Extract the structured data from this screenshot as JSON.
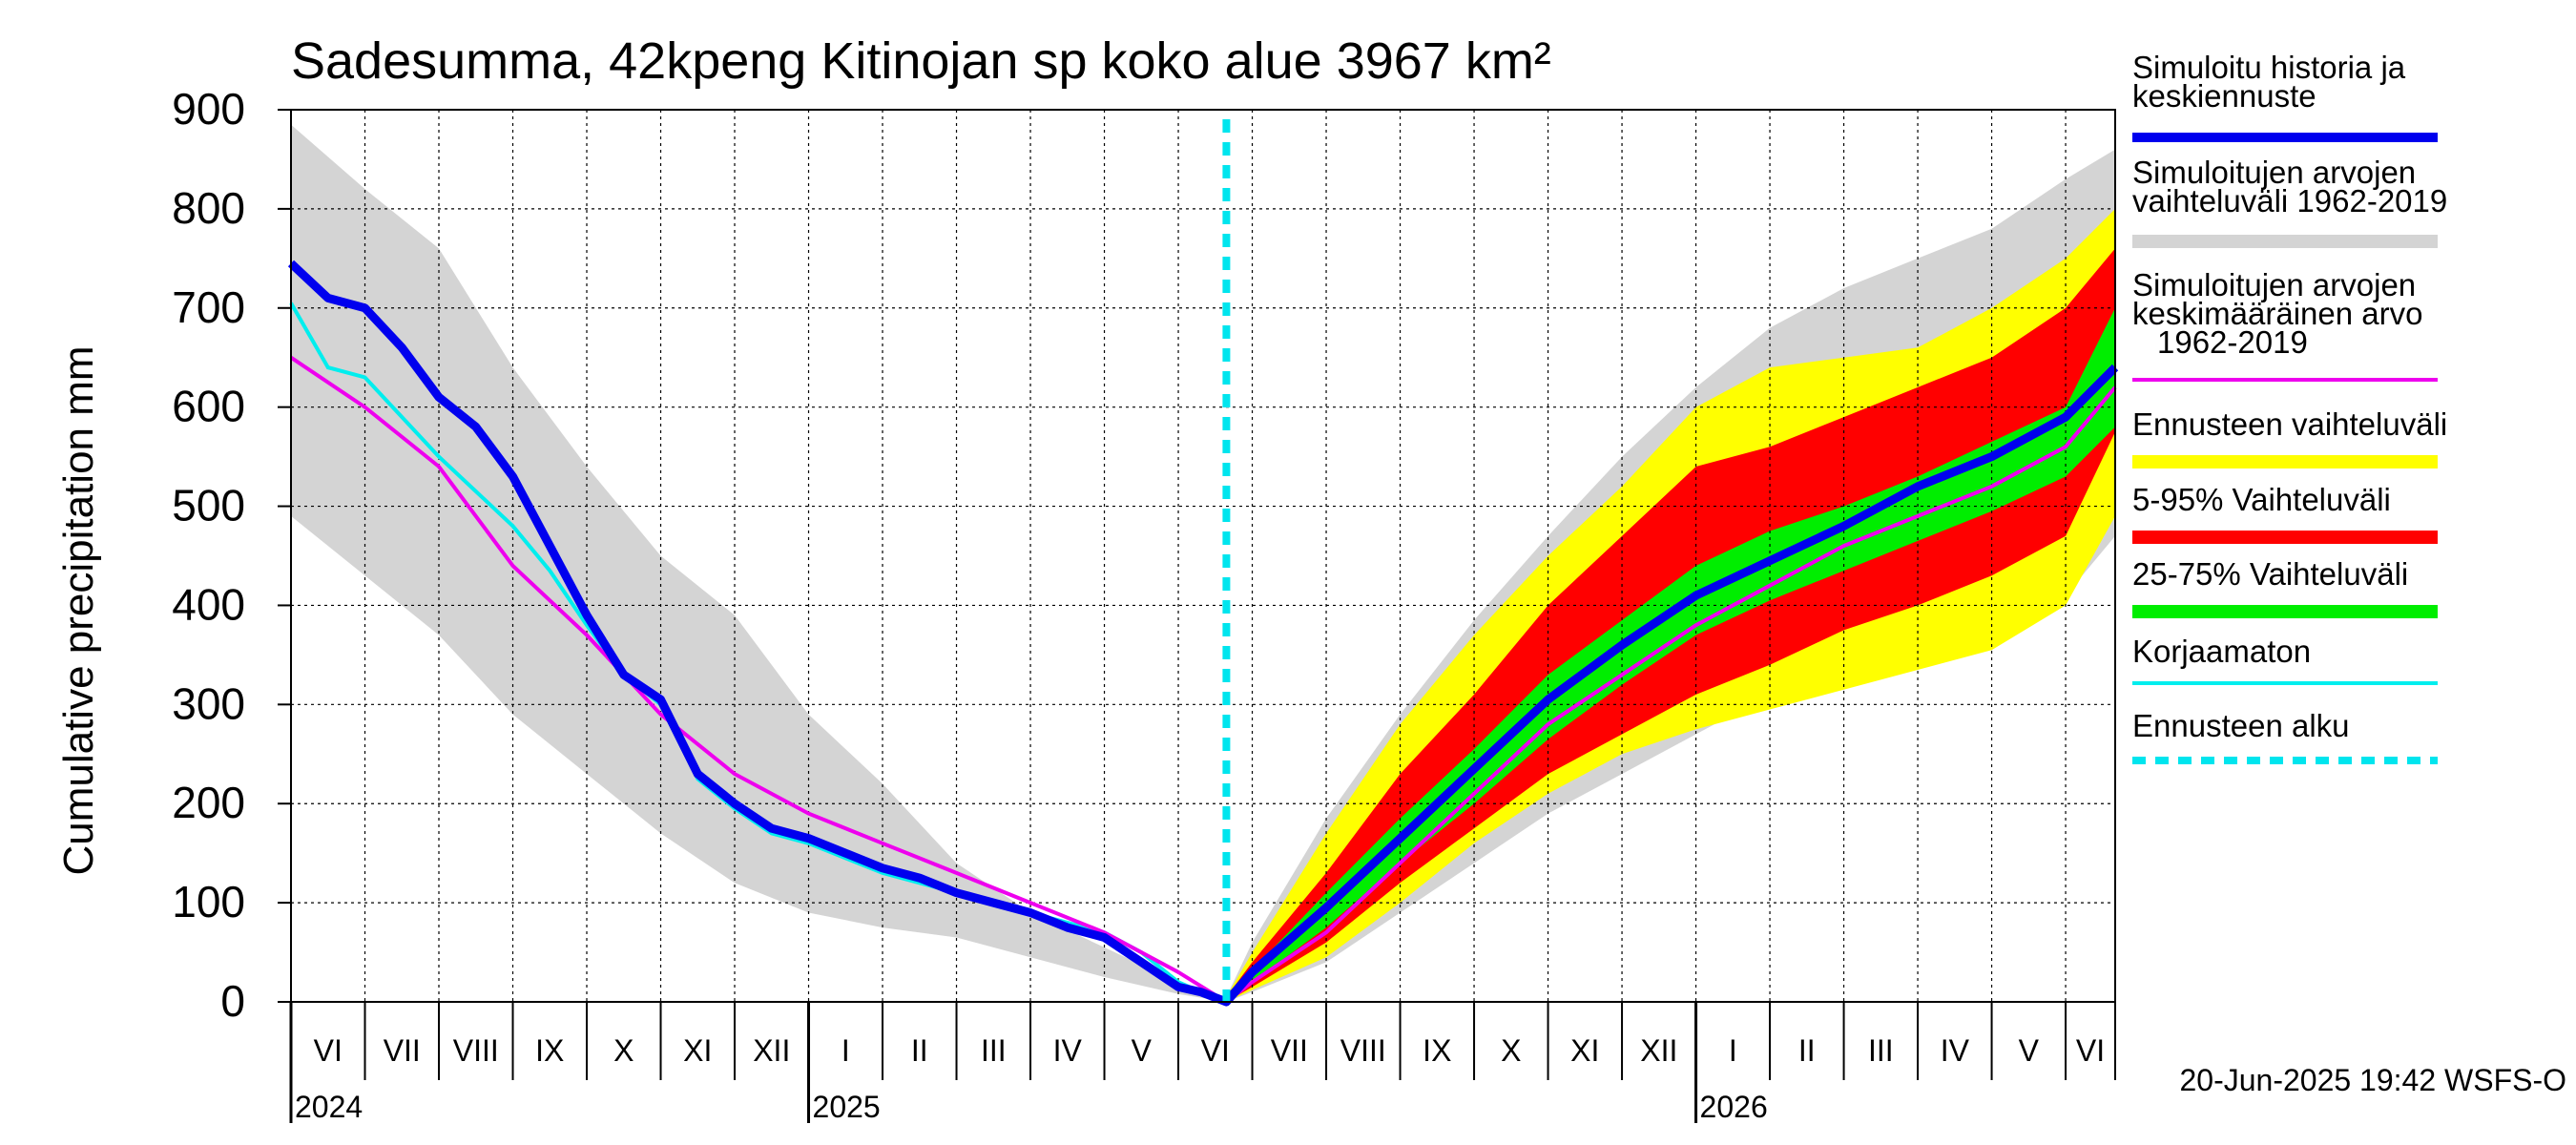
{
  "chart_data": {
    "type": "area",
    "title": "Sadesumma, 42kpeng Kitinojan sp koko alue 3967 km²",
    "ylabel": "Cumulative precipitation   mm",
    "xlabel": "",
    "ylim": [
      0,
      900
    ],
    "yticks": [
      0,
      100,
      200,
      300,
      400,
      500,
      600,
      700,
      800,
      900
    ],
    "x_unit": "months since 1 Jun 2024",
    "xlim": [
      0,
      24.67
    ],
    "month_labels": [
      "VI",
      "VII",
      "VIII",
      "IX",
      "X",
      "XI",
      "XII",
      "I",
      "II",
      "III",
      "IV",
      "V",
      "VI",
      "VII",
      "VIII",
      "IX",
      "X",
      "XI",
      "XII",
      "I",
      "II",
      "III",
      "IV",
      "V",
      "VI"
    ],
    "year_labels": [
      {
        "label": "2024",
        "month": 0
      },
      {
        "label": "2025",
        "month": 7
      },
      {
        "label": "2026",
        "month": 19
      }
    ],
    "forecast_start": 12.65,
    "footer": "20-Jun-2025 19:42 WSFS-O",
    "colors": {
      "history": "#0000ee",
      "sim_range": "#d4d4d4",
      "sim_mean": "#ee00ee",
      "forecast_range": "#ffff00",
      "p5_95": "#ff0000",
      "p25_75": "#00ee00",
      "uncorrected": "#00eeee",
      "forecast_start": "#00e5ee"
    },
    "legend": [
      {
        "label": "Simuloitu historia ja",
        "label2": "keskiennuste",
        "label3": "",
        "key": "history",
        "style": "line-thick"
      },
      {
        "label": "Simuloitujen arvojen",
        "label2": "vaihteluväli 1962-2019",
        "label3": "",
        "key": "sim_range",
        "style": "band"
      },
      {
        "label": "Simuloitujen arvojen",
        "label2": "keskimääräinen arvo",
        "label3": "1962-2019",
        "key": "sim_mean",
        "style": "line"
      },
      {
        "label": "Ennusteen vaihteluväli",
        "label2": "",
        "label3": "",
        "key": "forecast_range",
        "style": "band"
      },
      {
        "label": "5-95% Vaihteluväli",
        "label2": "",
        "label3": "",
        "key": "p5_95",
        "style": "band"
      },
      {
        "label": "25-75% Vaihteluväli",
        "label2": "",
        "label3": "",
        "key": "p25_75",
        "style": "band"
      },
      {
        "label": "Korjaamaton",
        "label2": "",
        "label3": "",
        "key": "uncorrected",
        "style": "line"
      },
      {
        "label": "Ennusteen alku",
        "label2": "",
        "label3": "",
        "key": "forecast_start",
        "style": "dashed"
      }
    ],
    "series": {
      "sim_range": {
        "x": [
          0,
          1,
          2,
          3,
          4,
          5,
          6,
          7,
          8,
          9,
          10,
          11,
          12,
          12.65,
          13,
          14,
          15,
          16,
          17,
          18,
          19,
          20,
          21,
          22,
          23,
          24,
          24.67
        ],
        "upper": [
          885,
          820,
          760,
          640,
          540,
          450,
          390,
          290,
          220,
          140,
          90,
          55,
          20,
          5,
          60,
          185,
          290,
          385,
          470,
          550,
          620,
          680,
          720,
          750,
          780,
          830,
          860
        ],
        "lower": [
          490,
          430,
          370,
          290,
          230,
          170,
          120,
          90,
          75,
          65,
          45,
          25,
          8,
          0,
          10,
          40,
          90,
          140,
          190,
          230,
          270,
          310,
          330,
          350,
          375,
          410,
          470
        ]
      },
      "forecast_range": {
        "x": [
          12.65,
          13,
          14,
          15,
          16,
          17,
          18,
          19,
          20,
          21,
          22,
          23,
          24,
          24.67
        ],
        "upper": [
          5,
          50,
          170,
          280,
          370,
          450,
          520,
          600,
          640,
          650,
          660,
          700,
          750,
          800
        ],
        "lower": [
          0,
          12,
          45,
          100,
          160,
          210,
          250,
          275,
          295,
          315,
          335,
          355,
          400,
          490
        ]
      },
      "p5_95": {
        "x": [
          12.65,
          13,
          14,
          15,
          16,
          17,
          18,
          19,
          20,
          21,
          22,
          23,
          24,
          24.67
        ],
        "upper": [
          5,
          40,
          130,
          230,
          310,
          400,
          470,
          540,
          560,
          590,
          620,
          650,
          700,
          760
        ],
        "lower": [
          0,
          15,
          60,
          120,
          175,
          230,
          270,
          310,
          340,
          375,
          400,
          430,
          470,
          575
        ]
      },
      "p25_75": {
        "x": [
          12.65,
          13,
          14,
          15,
          16,
          17,
          18,
          19,
          20,
          21,
          22,
          23,
          24,
          24.67
        ],
        "upper": [
          3,
          32,
          110,
          185,
          255,
          330,
          385,
          440,
          475,
          500,
          530,
          565,
          600,
          700
        ],
        "lower": [
          1,
          20,
          75,
          140,
          200,
          265,
          320,
          370,
          405,
          435,
          465,
          495,
          530,
          580
        ]
      },
      "sim_mean": {
        "x": [
          0,
          1,
          2,
          3,
          4,
          5,
          6,
          7,
          8,
          9,
          10,
          11,
          12,
          12.65,
          13,
          14,
          15,
          16,
          17,
          18,
          19,
          20,
          21,
          22,
          23,
          24,
          24.67
        ],
        "y": [
          650,
          600,
          540,
          440,
          370,
          290,
          230,
          190,
          160,
          130,
          100,
          70,
          30,
          0,
          20,
          70,
          140,
          210,
          280,
          330,
          380,
          420,
          460,
          490,
          520,
          560,
          620
        ]
      },
      "history": {
        "x": [
          0,
          0.5,
          1,
          1.5,
          2,
          2.5,
          3,
          3.5,
          4,
          4.5,
          5,
          5.5,
          6,
          6.5,
          7,
          7.5,
          8,
          8.5,
          9,
          9.5,
          10,
          10.5,
          11,
          11.5,
          12,
          12.3,
          12.65,
          13,
          14,
          15,
          16,
          17,
          18,
          19,
          20,
          21,
          22,
          23,
          24,
          24.67
        ],
        "y": [
          745,
          710,
          700,
          660,
          610,
          580,
          530,
          460,
          390,
          330,
          305,
          230,
          200,
          175,
          165,
          150,
          135,
          125,
          110,
          100,
          90,
          75,
          65,
          40,
          15,
          10,
          0,
          30,
          95,
          165,
          235,
          305,
          360,
          410,
          445,
          480,
          520,
          550,
          590,
          640
        ]
      },
      "uncorrected": {
        "x": [
          0,
          0.5,
          1,
          1.5,
          2,
          2.5,
          3,
          3.5,
          4,
          4.5,
          5,
          5.5,
          6,
          6.5,
          7,
          7.5,
          8,
          8.5,
          9,
          9.5,
          10,
          10.5,
          11,
          11.5,
          12,
          12.3,
          12.65
        ],
        "y": [
          705,
          640,
          630,
          590,
          550,
          515,
          480,
          435,
          380,
          330,
          300,
          225,
          195,
          170,
          160,
          145,
          130,
          120,
          110,
          100,
          90,
          80,
          70,
          50,
          20,
          10,
          0
        ]
      }
    }
  }
}
